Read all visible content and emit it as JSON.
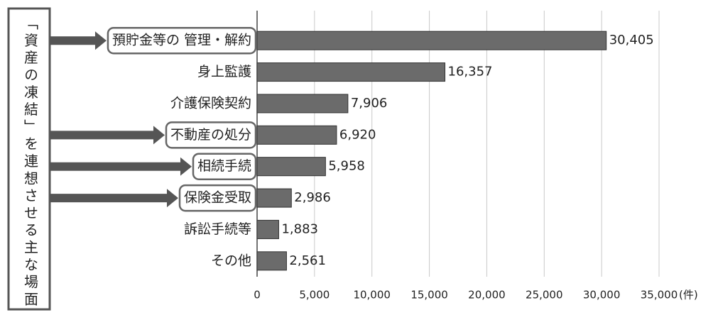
{
  "chart_data": {
    "type": "barh",
    "annotation": "「資産の凍結」を連想させる主な場面",
    "x_unit": "(件)",
    "categories": [
      "預貯金等の 管理・解約",
      "身上監護",
      "介護保険契約",
      "不動産の処分",
      "相続手続",
      "保険金受取",
      "訴訟手続等",
      "その他"
    ],
    "values": [
      30405,
      16357,
      7906,
      6920,
      5958,
      2986,
      1883,
      2561
    ],
    "value_labels": [
      "30,405",
      "16,357",
      "7,906",
      "6,920",
      "5,958",
      "2,986",
      "1,883",
      "2,561"
    ],
    "highlighted": [
      0,
      3,
      4,
      5
    ],
    "color": "#6b6b6b",
    "xlim": [
      0,
      35000
    ],
    "xticks": [
      0,
      {
        "value": 5000,
        "label": "5,000"
      },
      {
        "value": 10000,
        "label": "10,000"
      },
      {
        "value": 15000,
        "label": "15,000"
      },
      {
        "value": 20000,
        "label": "20,000"
      },
      {
        "value": 25000,
        "label": "25,000"
      },
      {
        "value": 30000,
        "label": "30,000"
      },
      {
        "value": 35000,
        "label": "35,000"
      }
    ],
    "grid": true
  }
}
